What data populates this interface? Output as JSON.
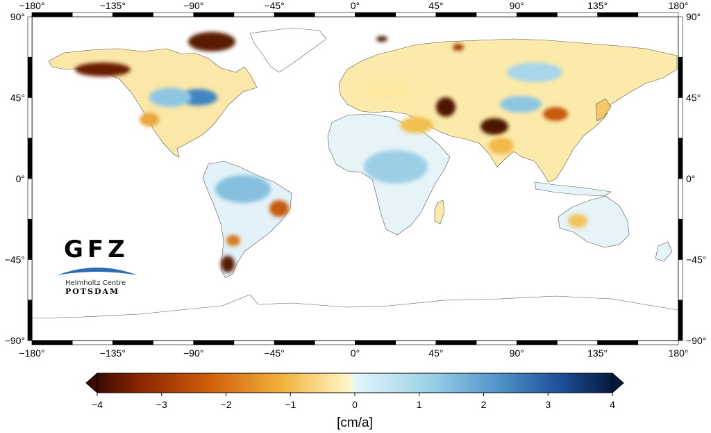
{
  "map": {
    "projection": "plate-carree",
    "lon_range": [
      -180,
      180
    ],
    "lat_range": [
      -90,
      90
    ],
    "lon_ticks": [
      "−180°",
      "−135°",
      "−90°",
      "−45°",
      "0°",
      "45°",
      "90°",
      "135°",
      "180°"
    ],
    "lat_ticks": [
      "90°",
      "45°",
      "0°",
      "−45°",
      "−90°"
    ],
    "lat_tick_values": [
      90,
      45,
      0,
      -45,
      -90
    ],
    "lon_tick_values": [
      -180,
      -135,
      -90,
      -45,
      0,
      45,
      90,
      135,
      180
    ],
    "frame_style": "alternating black-white"
  },
  "colorbar": {
    "tick_labels": [
      "−4",
      "−3",
      "−2",
      "−1",
      "0",
      "1",
      "2",
      "3",
      "4"
    ],
    "tick_values": [
      -4,
      -3,
      -2,
      -1,
      0,
      1,
      2,
      3,
      4
    ],
    "range": [
      -4,
      4
    ],
    "unit": "[cm/a]",
    "colors": {
      "neg_end": "#3b0a00",
      "neg_strong": "#c24a00",
      "neg_mid": "#f2b33a",
      "neg_weak": "#fff7c8",
      "pos_weak": "#ddf3fb",
      "pos_mid": "#6fb1d6",
      "pos_strong": "#1f5fa8",
      "pos_end": "#041a3d"
    }
  },
  "logo": {
    "letters": "GFZ",
    "subtitle": "Helmholtz Centre",
    "city": "POTSDAM",
    "arc_color": "#2e6bb3"
  }
}
